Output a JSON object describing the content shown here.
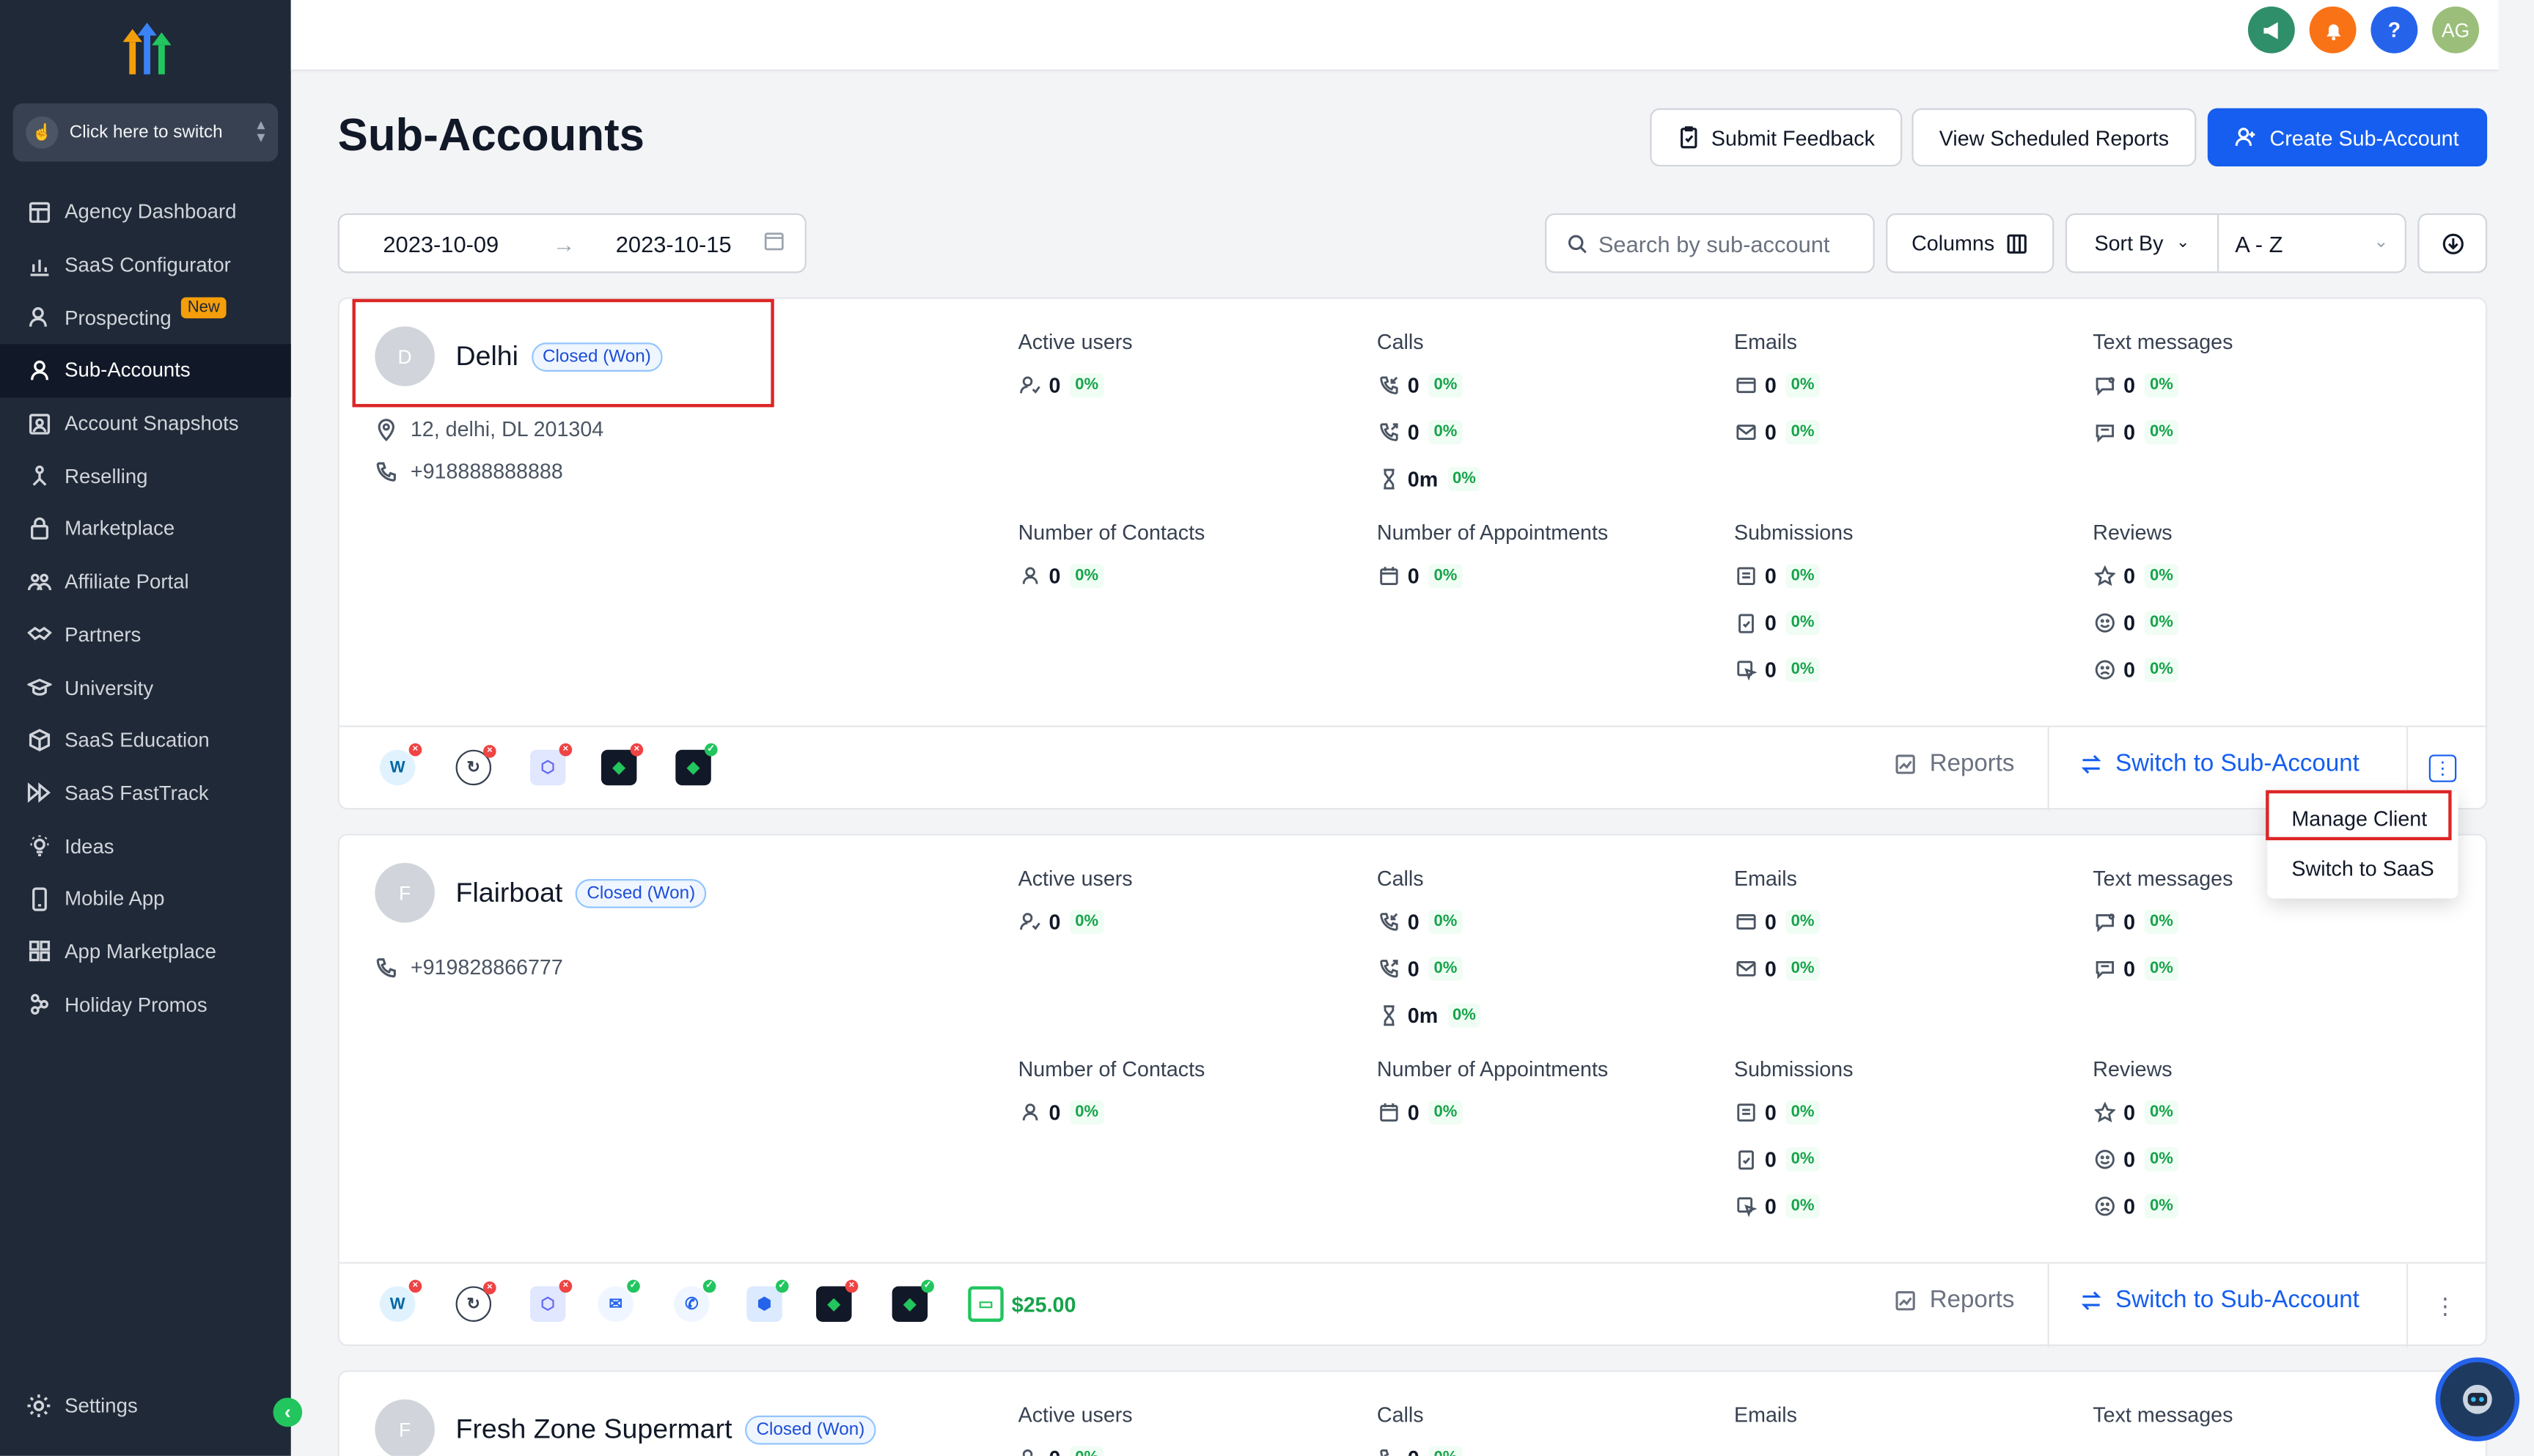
{
  "sidebar": {
    "switcher_label": "Click here to switch",
    "items": [
      {
        "label": "Agency Dashboard",
        "icon": "dashboard-icon",
        "active": false
      },
      {
        "label": "SaaS Configurator",
        "icon": "chart-icon",
        "active": false
      },
      {
        "label": "Prospecting",
        "icon": "user-search-icon",
        "active": false,
        "badge": "New"
      },
      {
        "label": "Sub-Accounts",
        "icon": "user-icon",
        "active": true
      },
      {
        "label": "Account Snapshots",
        "icon": "snapshot-icon",
        "active": false
      },
      {
        "label": "Reselling",
        "icon": "reselling-icon",
        "active": false
      },
      {
        "label": "Marketplace",
        "icon": "bag-icon",
        "active": false
      },
      {
        "label": "Affiliate Portal",
        "icon": "users-icon",
        "active": false
      },
      {
        "label": "Partners",
        "icon": "handshake-icon",
        "active": false
      },
      {
        "label": "University",
        "icon": "graduation-icon",
        "active": false
      },
      {
        "label": "SaaS Education",
        "icon": "education-icon",
        "active": false
      },
      {
        "label": "SaaS FastTrack",
        "icon": "fasttrack-icon",
        "active": false
      },
      {
        "label": "Ideas",
        "icon": "lightbulb-icon",
        "active": false
      },
      {
        "label": "Mobile App",
        "icon": "mobile-icon",
        "active": false
      },
      {
        "label": "App Marketplace",
        "icon": "apps-icon",
        "active": false
      },
      {
        "label": "Holiday Promos",
        "icon": "gift-icon",
        "active": false
      }
    ],
    "settings_label": "Settings",
    "collapse_icon": "chevron-left-icon"
  },
  "topbar": {
    "user_initials": "AG",
    "help_label": "?",
    "colors": {
      "announce": "#2f8f6a",
      "notify": "#f97316",
      "help": "#2563eb",
      "avatar": "#9bbf7a"
    }
  },
  "header": {
    "title": "Sub-Accounts",
    "submit_feedback": "Submit Feedback",
    "view_reports": "View Scheduled Reports",
    "create": "Create Sub-Account"
  },
  "filters": {
    "date_from": "2023-10-09",
    "date_to": "2023-10-15",
    "search_placeholder": "Search by sub-account",
    "columns": "Columns",
    "sort_by": "Sort By",
    "sort_value": "A - Z"
  },
  "metric_labels": {
    "active_users": "Active users",
    "calls": "Calls",
    "emails": "Emails",
    "texts": "Text messages",
    "contacts": "Number of Contacts",
    "appointments": "Number of Appointments",
    "submissions": "Submissions",
    "reviews": "Reviews"
  },
  "footer_labels": {
    "reports": "Reports",
    "switch": "Switch to Sub-Account"
  },
  "accounts": [
    {
      "initial": "D",
      "name": "Delhi",
      "status": "Closed (Won)",
      "address": "12, delhi, DL 201304",
      "phone": "+918888888888",
      "zero": "0",
      "pct": "0%",
      "duration": "0m",
      "wallet": ""
    },
    {
      "initial": "F",
      "name": "Flairboat",
      "status": "Closed (Won)",
      "address": "",
      "phone": "+919828866777",
      "zero": "0",
      "pct": "0%",
      "duration": "0m",
      "wallet": "$25.00"
    },
    {
      "initial": "F",
      "name": "Fresh Zone Supermart",
      "status": "Closed (Won)",
      "zero": "0",
      "pct": "0%"
    }
  ],
  "dropdown": {
    "manage_client": "Manage Client",
    "switch_saas": "Switch to SaaS"
  },
  "colors": {
    "primary": "#155eef",
    "sidebar_bg": "#1f2937",
    "highlight_red": "#dc2626",
    "success": "#16a34a"
  }
}
